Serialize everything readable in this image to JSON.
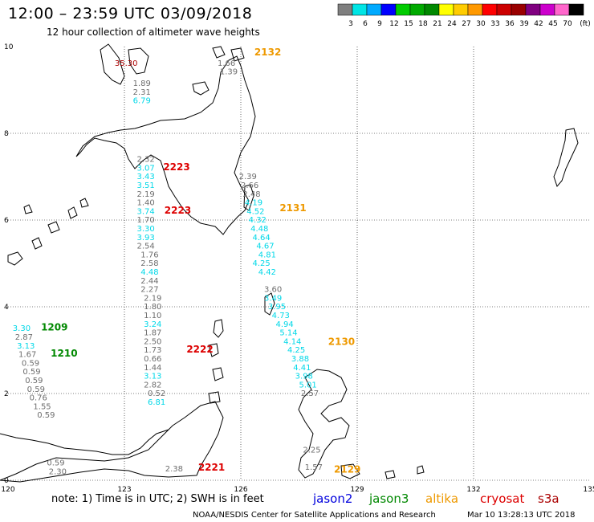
{
  "header": {
    "title": "12:00 – 23:59 UTC 03/09/2018",
    "subtitle": "12 hour collection of altimeter wave heights"
  },
  "colorbar": {
    "colors": [
      "#7f7f7f",
      "#00e5e5",
      "#00aaff",
      "#0000ff",
      "#00cc00",
      "#00aa00",
      "#008800",
      "#ffff00",
      "#ffcc00",
      "#ff9900",
      "#ff0000",
      "#cc0000",
      "#990000",
      "#800080",
      "#cc00cc",
      "#ff66cc",
      "#000000"
    ],
    "labels": [
      "3",
      "6",
      "9",
      "12",
      "15",
      "18",
      "21",
      "24",
      "27",
      "30",
      "33",
      "36",
      "39",
      "42",
      "45",
      "70",
      "(ft)"
    ]
  },
  "axes": {
    "x_ticks": [
      "120",
      "123",
      "126",
      "129",
      "132",
      "135"
    ],
    "y_ticks": [
      "0",
      "2",
      "4",
      "6",
      "8",
      "10"
    ]
  },
  "colors": {
    "gray": "#6e6e6e",
    "cyan": "#00d8e8",
    "red": "#dd0000",
    "orange": "#ee9900",
    "green": "#008800",
    "blue": "#0000dd",
    "darkred": "#aa0000"
  },
  "observations": [
    {
      "text": "35.30",
      "c": "darkred",
      "lon": 122.75,
      "lat": 9.56
    },
    {
      "text": "1.89",
      "c": "gray",
      "lon": 123.22,
      "lat": 9.09
    },
    {
      "text": "2.31",
      "c": "gray",
      "lon": 123.22,
      "lat": 8.89
    },
    {
      "text": "6.79",
      "c": "cyan",
      "lon": 123.22,
      "lat": 8.69
    },
    {
      "text": "1.66",
      "c": "gray",
      "lon": 125.4,
      "lat": 9.56
    },
    {
      "text": "1.39",
      "c": "gray",
      "lon": 125.46,
      "lat": 9.36
    },
    {
      "text": "2.32",
      "c": "gray",
      "lon": 123.32,
      "lat": 7.34
    },
    {
      "text": "3.07",
      "c": "cyan",
      "lon": 123.32,
      "lat": 7.14
    },
    {
      "text": "3.43",
      "c": "cyan",
      "lon": 123.32,
      "lat": 6.94
    },
    {
      "text": "3.51",
      "c": "cyan",
      "lon": 123.32,
      "lat": 6.74
    },
    {
      "text": "2.19",
      "c": "gray",
      "lon": 123.32,
      "lat": 6.54
    },
    {
      "text": "1.40",
      "c": "gray",
      "lon": 123.32,
      "lat": 6.34
    },
    {
      "text": "3.74",
      "c": "cyan",
      "lon": 123.32,
      "lat": 6.14
    },
    {
      "text": "1.70",
      "c": "gray",
      "lon": 123.32,
      "lat": 5.94
    },
    {
      "text": "3.30",
      "c": "cyan",
      "lon": 123.32,
      "lat": 5.74
    },
    {
      "text": "3.93",
      "c": "cyan",
      "lon": 123.32,
      "lat": 5.54
    },
    {
      "text": "2.54",
      "c": "gray",
      "lon": 123.32,
      "lat": 5.34
    },
    {
      "text": "1.76",
      "c": "gray",
      "lon": 123.42,
      "lat": 5.14
    },
    {
      "text": "2.58",
      "c": "gray",
      "lon": 123.42,
      "lat": 4.94
    },
    {
      "text": "4.48",
      "c": "cyan",
      "lon": 123.42,
      "lat": 4.74
    },
    {
      "text": "2.44",
      "c": "gray",
      "lon": 123.42,
      "lat": 4.54
    },
    {
      "text": "2.27",
      "c": "gray",
      "lon": 123.42,
      "lat": 4.34
    },
    {
      "text": "2.19",
      "c": "gray",
      "lon": 123.5,
      "lat": 4.14
    },
    {
      "text": "1.80",
      "c": "gray",
      "lon": 123.5,
      "lat": 3.94
    },
    {
      "text": "1.10",
      "c": "gray",
      "lon": 123.5,
      "lat": 3.74
    },
    {
      "text": "3.24",
      "c": "cyan",
      "lon": 123.5,
      "lat": 3.54
    },
    {
      "text": "1.87",
      "c": "gray",
      "lon": 123.5,
      "lat": 3.34
    },
    {
      "text": "2.50",
      "c": "gray",
      "lon": 123.5,
      "lat": 3.14
    },
    {
      "text": "1.73",
      "c": "gray",
      "lon": 123.5,
      "lat": 2.94
    },
    {
      "text": "0.66",
      "c": "gray",
      "lon": 123.5,
      "lat": 2.74
    },
    {
      "text": "1.44",
      "c": "gray",
      "lon": 123.5,
      "lat": 2.54
    },
    {
      "text": "3.13",
      "c": "cyan",
      "lon": 123.5,
      "lat": 2.34
    },
    {
      "text": "2.82",
      "c": "gray",
      "lon": 123.5,
      "lat": 2.14
    },
    {
      "text": "0.52",
      "c": "gray",
      "lon": 123.6,
      "lat": 1.94
    },
    {
      "text": "6.81",
      "c": "cyan",
      "lon": 123.6,
      "lat": 1.74
    },
    {
      "text": "2.38",
      "c": "gray",
      "lon": 124.05,
      "lat": 0.2
    },
    {
      "text": "3.30",
      "c": "cyan",
      "lon": 120.12,
      "lat": 3.44
    },
    {
      "text": "2.87",
      "c": "gray",
      "lon": 120.18,
      "lat": 3.24
    },
    {
      "text": "3.13",
      "c": "cyan",
      "lon": 120.23,
      "lat": 3.04
    },
    {
      "text": "1.67",
      "c": "gray",
      "lon": 120.27,
      "lat": 2.84
    },
    {
      "text": "0.59",
      "c": "gray",
      "lon": 120.35,
      "lat": 2.64
    },
    {
      "text": "0.59",
      "c": "gray",
      "lon": 120.38,
      "lat": 2.44
    },
    {
      "text": "0.59",
      "c": "gray",
      "lon": 120.44,
      "lat": 2.24
    },
    {
      "text": "0.59",
      "c": "gray",
      "lon": 120.49,
      "lat": 2.04
    },
    {
      "text": "0.76",
      "c": "gray",
      "lon": 120.55,
      "lat": 1.84
    },
    {
      "text": "1.55",
      "c": "gray",
      "lon": 120.65,
      "lat": 1.64
    },
    {
      "text": "0.59",
      "c": "gray",
      "lon": 120.75,
      "lat": 1.44
    },
    {
      "text": "0.59",
      "c": "gray",
      "lon": 121.0,
      "lat": 0.34
    },
    {
      "text": "2.30",
      "c": "gray",
      "lon": 121.05,
      "lat": 0.14
    },
    {
      "text": "2.39",
      "c": "gray",
      "lon": 125.95,
      "lat": 6.94
    },
    {
      "text": "2.66",
      "c": "gray",
      "lon": 126.0,
      "lat": 6.74
    },
    {
      "text": "2.48",
      "c": "gray",
      "lon": 126.05,
      "lat": 6.54
    },
    {
      "text": "4.19",
      "c": "cyan",
      "lon": 126.1,
      "lat": 6.34
    },
    {
      "text": "4.52",
      "c": "cyan",
      "lon": 126.15,
      "lat": 6.14
    },
    {
      "text": "4.32",
      "c": "cyan",
      "lon": 126.2,
      "lat": 5.94
    },
    {
      "text": "4.48",
      "c": "cyan",
      "lon": 126.25,
      "lat": 5.74
    },
    {
      "text": "4.64",
      "c": "cyan",
      "lon": 126.3,
      "lat": 5.54
    },
    {
      "text": "4.67",
      "c": "cyan",
      "lon": 126.4,
      "lat": 5.34
    },
    {
      "text": "4.81",
      "c": "cyan",
      "lon": 126.45,
      "lat": 5.14
    },
    {
      "text": "4.25",
      "c": "cyan",
      "lon": 126.3,
      "lat": 4.94
    },
    {
      "text": "4.42",
      "c": "cyan",
      "lon": 126.45,
      "lat": 4.74
    },
    {
      "text": "3.60",
      "c": "gray",
      "lon": 126.6,
      "lat": 4.34
    },
    {
      "text": "3.49",
      "c": "cyan",
      "lon": 126.6,
      "lat": 4.14
    },
    {
      "text": "3.95",
      "c": "cyan",
      "lon": 126.7,
      "lat": 3.94
    },
    {
      "text": "4.73",
      "c": "cyan",
      "lon": 126.8,
      "lat": 3.74
    },
    {
      "text": "4.94",
      "c": "cyan",
      "lon": 126.9,
      "lat": 3.54
    },
    {
      "text": "5.14",
      "c": "cyan",
      "lon": 127.0,
      "lat": 3.34
    },
    {
      "text": "4.14",
      "c": "cyan",
      "lon": 127.1,
      "lat": 3.14
    },
    {
      "text": "4.25",
      "c": "cyan",
      "lon": 127.2,
      "lat": 2.94
    },
    {
      "text": "3.88",
      "c": "cyan",
      "lon": 127.3,
      "lat": 2.74
    },
    {
      "text": "4.41",
      "c": "cyan",
      "lon": 127.35,
      "lat": 2.54
    },
    {
      "text": "3.98",
      "c": "cyan",
      "lon": 127.4,
      "lat": 2.34
    },
    {
      "text": "5.01",
      "c": "cyan",
      "lon": 127.5,
      "lat": 2.14
    },
    {
      "text": "2.57",
      "c": "gray",
      "lon": 127.55,
      "lat": 1.94
    },
    {
      "text": "2.25",
      "c": "gray",
      "lon": 127.6,
      "lat": 0.64
    },
    {
      "text": "1.57",
      "c": "gray",
      "lon": 127.65,
      "lat": 0.24
    }
  ],
  "passes": [
    {
      "text": "2132",
      "c": "orange",
      "lon": 126.35,
      "lat": 9.8
    },
    {
      "text": "2223",
      "c": "red",
      "lon": 124.0,
      "lat": 7.15
    },
    {
      "text": "2223",
      "c": "red",
      "lon": 124.03,
      "lat": 6.15
    },
    {
      "text": "2131",
      "c": "orange",
      "lon": 127.0,
      "lat": 6.2
    },
    {
      "text": "1209",
      "c": "green",
      "lon": 120.85,
      "lat": 3.45
    },
    {
      "text": "1210",
      "c": "green",
      "lon": 121.1,
      "lat": 2.85
    },
    {
      "text": "2222",
      "c": "red",
      "lon": 124.6,
      "lat": 2.94
    },
    {
      "text": "2130",
      "c": "orange",
      "lon": 128.25,
      "lat": 3.12
    },
    {
      "text": "2221",
      "c": "red",
      "lon": 124.9,
      "lat": 0.22
    },
    {
      "text": "2129",
      "c": "orange",
      "lon": 128.4,
      "lat": 0.18
    }
  ],
  "legend": {
    "note": "note: 1) Time is in UTC; 2) SWH is in feet",
    "satellites": [
      {
        "name": "jason2",
        "color": "#0000dd"
      },
      {
        "name": "jason3",
        "color": "#008800"
      },
      {
        "name": "altika",
        "color": "#ee9900"
      },
      {
        "name": "cryosat",
        "color": "#dd0000"
      },
      {
        "name": "s3a",
        "color": "#aa0000"
      }
    ],
    "credit": "NOAA/NESDIS Center for Satellite Applications and Research",
    "timestamp": "Mar 10 13:28:13 UTC 2018"
  }
}
